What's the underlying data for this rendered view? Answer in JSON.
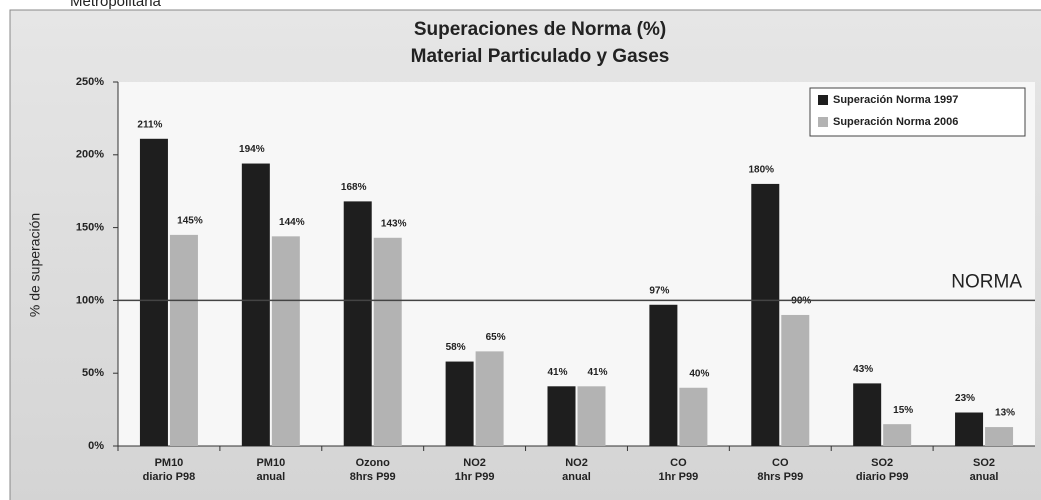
{
  "chart_data": {
    "type": "bar",
    "header_text": "Metropolitana",
    "title": "Superaciones de Norma (%)",
    "subtitle": "Material Particulado y Gases",
    "y_label": "% de superación",
    "categories": [
      "PM10\ndiario P98",
      "PM10\nanual",
      "Ozono\n8hrs P99",
      "NO2\n1hr P99",
      "NO2\nanual",
      "CO\n1hr P99",
      "CO\n8hrs P99",
      "SO2\ndiario P99",
      "SO2\nanual"
    ],
    "series": [
      {
        "name": "Superación Norma 1997",
        "color": "#1e1e1e",
        "values": [
          211,
          194,
          168,
          58,
          41,
          97,
          180,
          43,
          23
        ],
        "value_labels": [
          "211%",
          "194%",
          "168%",
          "58%",
          "41%",
          "97%",
          "180%",
          "43%",
          "23%"
        ]
      },
      {
        "name": "Superación Norma 2006",
        "color": "#b3b3b3",
        "values": [
          145,
          144,
          143,
          65,
          41,
          40,
          90,
          15,
          13
        ],
        "value_labels": [
          "145%",
          "144%",
          "143%",
          "65%",
          "41%",
          "40%",
          "90%",
          "15%",
          "13%"
        ]
      }
    ],
    "ylim": [
      0,
      250
    ],
    "yticks": [
      {
        "value": 0,
        "label": "0%"
      },
      {
        "value": 50,
        "label": "50%"
      },
      {
        "value": 100,
        "label": "100%"
      },
      {
        "value": 150,
        "label": "150%"
      },
      {
        "value": 200,
        "label": "200%"
      },
      {
        "value": 250,
        "label": "250%"
      }
    ],
    "reference_line": {
      "value": 100,
      "label": "NORMA"
    },
    "legend": "top-right",
    "grid": false
  }
}
